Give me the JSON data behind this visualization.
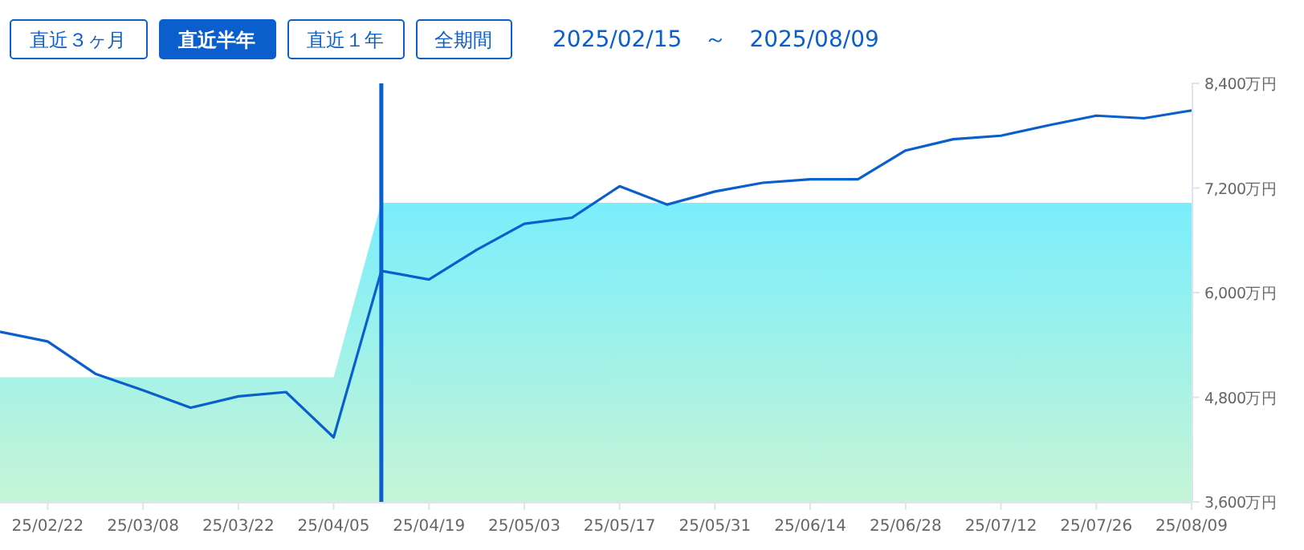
{
  "chart_data": {
    "type": "line",
    "subtitle": "2025/02/15　～　2025/08/09",
    "annotations": [
      "直近３ヶ月",
      "直近半年",
      "直近１年",
      "全期間"
    ],
    "x": [
      "2025-02-15",
      "2025-02-22",
      "2025-03-01",
      "2025-03-08",
      "2025-03-15",
      "2025-03-22",
      "2025-03-29",
      "2025-04-05",
      "2025-04-12",
      "2025-04-19",
      "2025-04-26",
      "2025-05-03",
      "2025-05-10",
      "2025-05-17",
      "2025-05-24",
      "2025-05-31",
      "2025-06-07",
      "2025-06-14",
      "2025-06-21",
      "2025-06-28",
      "2025-07-05",
      "2025-07-12",
      "2025-07-19",
      "2025-07-26",
      "2025-08-02",
      "2025-08-09"
    ],
    "series": [
      {
        "type": "area",
        "color": "#7aeefc",
        "values": [
          5030,
          5030,
          5030,
          5030,
          5030,
          5030,
          5030,
          5030,
          7030,
          7030,
          7030,
          7030,
          7030,
          7030,
          7030,
          7030,
          7030,
          7030,
          7030,
          7030,
          7030,
          7030,
          7030,
          7030,
          7030,
          7030
        ]
      },
      {
        "color": "#0a5fcc",
        "values": [
          5550,
          5440,
          5070,
          4880,
          4680,
          4810,
          4860,
          4340,
          6250,
          6150,
          6490,
          6790,
          6860,
          7220,
          7010,
          7160,
          7260,
          7300,
          7300,
          7630,
          7760,
          7800,
          7920,
          8030,
          8000,
          8090
        ]
      }
    ],
    "xlim": [
      "2025-02-15",
      "2025-08-09"
    ],
    "xticks": [
      {
        "value": "2025-02-22",
        "label": "25/02/22"
      },
      {
        "value": "2025-03-08",
        "label": "25/03/08"
      },
      {
        "value": "2025-03-22",
        "label": "25/03/22"
      },
      {
        "value": "2025-04-05",
        "label": "25/04/05"
      },
      {
        "value": "2025-04-19",
        "label": "25/04/19"
      },
      {
        "value": "2025-05-03",
        "label": "25/05/03"
      },
      {
        "value": "2025-05-17",
        "label": "25/05/17"
      },
      {
        "value": "2025-05-31",
        "label": "25/05/31"
      },
      {
        "value": "2025-06-14",
        "label": "25/06/14"
      },
      {
        "value": "2025-06-28",
        "label": "25/06/28"
      },
      {
        "value": "2025-07-12",
        "label": "25/07/12"
      },
      {
        "value": "2025-07-26",
        "label": "25/07/26"
      },
      {
        "value": "2025-08-09",
        "label": "25/08/09"
      }
    ],
    "ylim": [
      3600,
      8400
    ],
    "yticks": [
      {
        "value": 3600,
        "label": "3,600万円"
      },
      {
        "value": 4800,
        "label": "4,800万円"
      },
      {
        "value": 6000,
        "label": "6,000万円"
      },
      {
        "value": 7200,
        "label": "7,200万円"
      },
      {
        "value": 8400,
        "label": "8,400万円"
      }
    ],
    "ref_lines": [
      {
        "axis": "x",
        "value": "2025-04-12",
        "color": "#0a5fcc"
      }
    ],
    "grid": false,
    "line_style": "solid"
  }
}
